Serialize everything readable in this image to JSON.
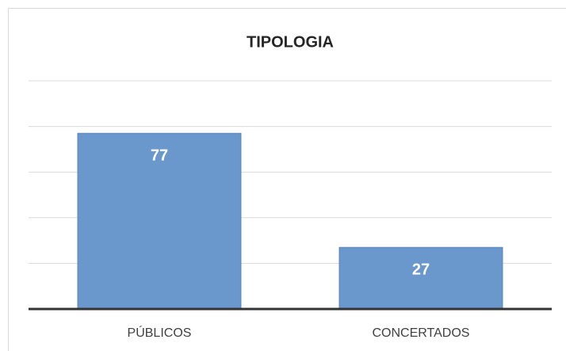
{
  "chart_data": {
    "type": "bar",
    "title": "TIPOLOGIA",
    "categories": [
      "PÚBLICOS",
      "CONCERTADOS"
    ],
    "values": [
      77,
      27
    ],
    "color": "#6a98cc",
    "ylim": [
      0,
      100
    ],
    "yticks": [
      0,
      20,
      40,
      60,
      80,
      100
    ],
    "grid": true
  }
}
